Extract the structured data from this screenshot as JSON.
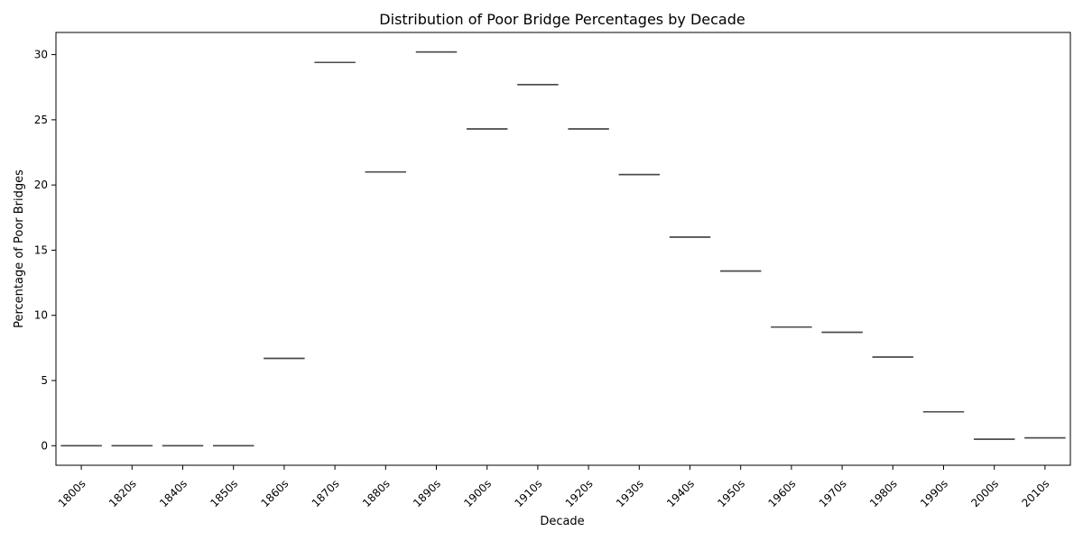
{
  "chart_data": {
    "type": "box",
    "title": "Distribution of Poor Bridge Percentages by Decade",
    "xlabel": "Decade",
    "ylabel": "Percentage of Poor Bridges",
    "categories": [
      "1800s",
      "1820s",
      "1840s",
      "1850s",
      "1860s",
      "1870s",
      "1880s",
      "1890s",
      "1900s",
      "1910s",
      "1920s",
      "1930s",
      "1940s",
      "1950s",
      "1960s",
      "1970s",
      "1980s",
      "1990s",
      "2000s",
      "2010s"
    ],
    "values": [
      0,
      0,
      0,
      0,
      6.7,
      29.4,
      21.0,
      30.2,
      24.3,
      27.7,
      24.3,
      20.8,
      16.0,
      13.4,
      9.1,
      8.7,
      6.8,
      2.6,
      0.5,
      0.6
    ],
    "ylim": [
      -1.5,
      31.7
    ],
    "yticks": [
      0,
      5,
      10,
      15,
      20,
      25,
      30
    ],
    "grid": false,
    "box_color": "#4a4a4a"
  }
}
